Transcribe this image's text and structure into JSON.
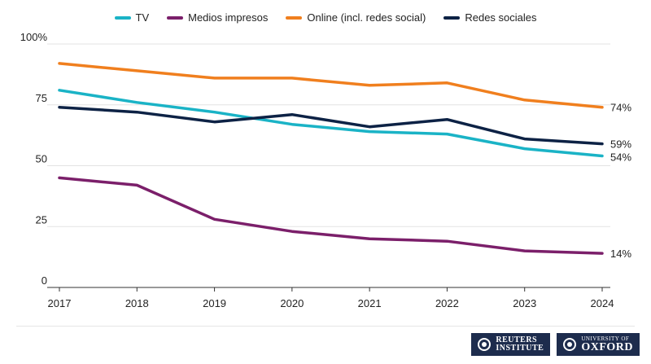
{
  "chart_data": {
    "type": "line",
    "x": [
      "2017",
      "2018",
      "2019",
      "2020",
      "2021",
      "2022",
      "2023",
      "2024"
    ],
    "ylim": [
      0,
      100
    ],
    "yticks": [
      0,
      25,
      50,
      75,
      100
    ],
    "ytick_labels": [
      "0",
      "25",
      "50",
      "75",
      "100%"
    ],
    "grid": "horizontal",
    "legend_position": "top-center",
    "series": [
      {
        "name": "TV",
        "color": "#1ab3c6",
        "values": [
          81,
          76,
          72,
          67,
          64,
          63,
          57,
          54
        ],
        "end_label": "54%"
      },
      {
        "name": "Medios impresos",
        "color": "#7b1f6a",
        "values": [
          45,
          42,
          28,
          23,
          20,
          19,
          15,
          14
        ],
        "end_label": "14%"
      },
      {
        "name": "Online (incl. redes social)",
        "color": "#f07f1e",
        "values": [
          92,
          89,
          86,
          86,
          83,
          84,
          77,
          74
        ],
        "end_label": "74%"
      },
      {
        "name": "Redes sociales",
        "color": "#0d2245",
        "values": [
          74,
          72,
          68,
          71,
          66,
          69,
          61,
          59
        ],
        "end_label": "59%"
      }
    ]
  },
  "logos": {
    "reuters_line1": "REUTERS",
    "reuters_line2": "INSTITUTE",
    "oxford_small": "UNIVERSITY OF",
    "oxford_big": "OXFORD"
  }
}
